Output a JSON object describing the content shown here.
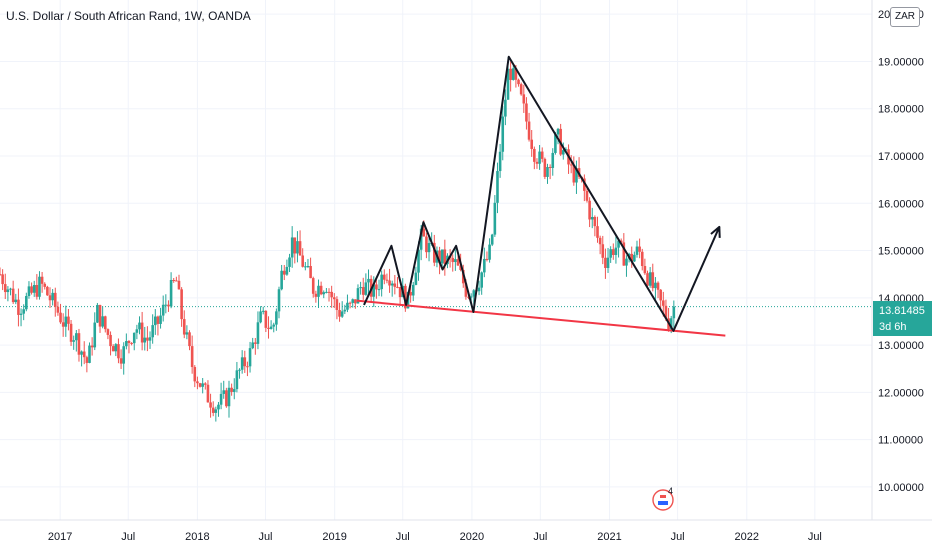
{
  "header": {
    "symbol_title": "U.S. Dollar / South African Rand, 1W, OANDA",
    "currency_button": "ZAR"
  },
  "price_label": {
    "value": "13.81485",
    "countdown": "3d 6h"
  },
  "events": {
    "earnings_badge": "4"
  },
  "colors": {
    "up": "#26a69a",
    "down": "#ef5350",
    "support_line": "#f23645",
    "drawing": "#131722",
    "grid": "#f0f3fa"
  },
  "chart_data": {
    "type": "candlestick",
    "title": "U.S. Dollar / South African Rand, 1W, OANDA",
    "y_axis": {
      "ticks": [
        "10.00000",
        "11.00000",
        "12.00000",
        "13.00000",
        "14.00000",
        "15.00000",
        "16.00000",
        "17.00000",
        "18.00000",
        "19.00000",
        "20.00000"
      ],
      "range": [
        9.3,
        20.3
      ],
      "position": "right"
    },
    "x_axis": {
      "ticks": [
        "2017",
        "Jul",
        "2018",
        "Jul",
        "2019",
        "Jul",
        "2020",
        "Jul",
        "2021",
        "Jul",
        "2022",
        "Jul"
      ],
      "tick_dates": [
        "2017-01-01",
        "2017-07-01",
        "2018-01-01",
        "2018-07-01",
        "2019-01-01",
        "2019-07-01",
        "2020-01-01",
        "2020-07-01",
        "2021-01-01",
        "2021-07-01",
        "2022-01-01",
        "2022-07-01"
      ],
      "visible_range": [
        "2016-07-25",
        "2022-11-30"
      ]
    },
    "last_price": 13.81485,
    "price_path": [
      [
        "2016-07-25",
        14.5
      ],
      [
        "2016-09-15",
        13.8
      ],
      [
        "2016-11-10",
        14.3
      ],
      [
        "2016-12-20",
        13.8
      ],
      [
        "2017-01-15",
        13.4
      ],
      [
        "2017-02-10",
        13.2
      ],
      [
        "2017-03-15",
        12.6
      ],
      [
        "2017-04-10",
        13.7
      ],
      [
        "2017-05-15",
        13.1
      ],
      [
        "2017-06-15",
        12.8
      ],
      [
        "2017-07-20",
        13.4
      ],
      [
        "2017-08-20",
        13.1
      ],
      [
        "2017-09-20",
        13.5
      ],
      [
        "2017-10-20",
        14.1
      ],
      [
        "2017-11-05",
        14.4
      ],
      [
        "2017-11-20",
        13.6
      ],
      [
        "2017-12-20",
        12.5
      ],
      [
        "2018-01-20",
        12.0
      ],
      [
        "2018-02-20",
        11.7
      ],
      [
        "2018-03-20",
        11.9
      ],
      [
        "2018-04-20",
        12.4
      ],
      [
        "2018-05-20",
        12.8
      ],
      [
        "2018-06-20",
        13.6
      ],
      [
        "2018-07-20",
        13.3
      ],
      [
        "2018-08-15",
        14.6
      ],
      [
        "2018-09-10",
        15.2
      ],
      [
        "2018-10-05",
        14.8
      ],
      [
        "2018-11-05",
        14.2
      ],
      [
        "2018-12-10",
        14.3
      ],
      [
        "2019-01-10",
        13.7
      ],
      [
        "2019-02-15",
        13.8
      ],
      [
        "2019-03-15",
        14.3
      ],
      [
        "2019-04-15",
        14.1
      ],
      [
        "2019-05-15",
        14.6
      ],
      [
        "2019-06-15",
        14.3
      ],
      [
        "2019-07-15",
        13.9
      ],
      [
        "2019-08-20",
        15.3
      ],
      [
        "2019-09-20",
        14.9
      ],
      [
        "2019-10-20",
        14.8
      ],
      [
        "2019-11-20",
        14.7
      ],
      [
        "2019-12-20",
        14.1
      ],
      [
        "2020-01-15",
        14.3
      ],
      [
        "2020-02-20",
        15.0
      ],
      [
        "2020-03-20",
        17.5
      ],
      [
        "2020-04-08",
        18.9
      ],
      [
        "2020-05-10",
        18.2
      ],
      [
        "2020-06-15",
        17.1
      ],
      [
        "2020-07-15",
        16.7
      ],
      [
        "2020-08-15",
        17.4
      ],
      [
        "2020-09-20",
        16.7
      ],
      [
        "2020-10-20",
        16.4
      ],
      [
        "2020-11-20",
        15.5
      ],
      [
        "2020-12-20",
        14.8
      ],
      [
        "2021-01-15",
        15.1
      ],
      [
        "2021-02-20",
        14.8
      ],
      [
        "2021-03-20",
        15.0
      ],
      [
        "2021-04-15",
        14.4
      ],
      [
        "2021-05-15",
        13.9
      ],
      [
        "2021-06-08",
        13.5
      ],
      [
        "2021-06-22",
        13.81485
      ]
    ],
    "drawings": [
      {
        "name": "support-line",
        "color": "#f23645",
        "points": [
          [
            "2019-03-01",
            13.94
          ],
          [
            "2021-11-05",
            13.2
          ]
        ]
      },
      {
        "name": "pattern-path",
        "color": "#131722",
        "points": [
          [
            "2019-03-20",
            13.85
          ],
          [
            "2019-06-01",
            15.1
          ],
          [
            "2019-07-10",
            13.85
          ],
          [
            "2019-08-25",
            15.6
          ],
          [
            "2019-10-15",
            14.6
          ],
          [
            "2019-11-20",
            15.1
          ],
          [
            "2020-01-05",
            13.7
          ],
          [
            "2020-04-08",
            19.1
          ],
          [
            "2021-06-20",
            13.3
          ],
          [
            "2021-10-20",
            15.5
          ]
        ]
      }
    ],
    "grid": true,
    "legend": "none"
  }
}
